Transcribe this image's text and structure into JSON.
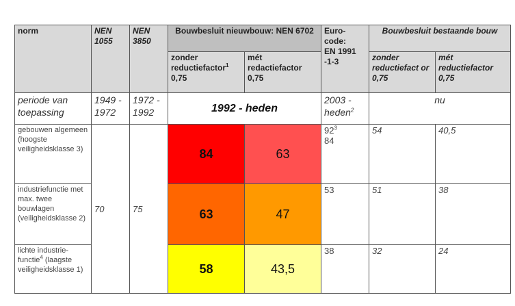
{
  "header": {
    "norm": "norm",
    "nen1055": "NEN 1055",
    "nen3850": "NEN 3850",
    "bb_nieuwbouw": "Bouwbesluit nieuwbouw: NEN 6702",
    "nb_zonder": "zonder reductiefactor",
    "nb_zonder_sup": "1",
    "nb_zonder_val": "0,75",
    "nb_met": "mét redactiefactor",
    "nb_met_val": "0,75",
    "eurocode_1": "Euro-code:",
    "eurocode_2": "EN 1991 -1-3",
    "bb_bestaand": "Bouwbesluit bestaande bouw",
    "bb_zonder": "zonder reductiefact or 0,75",
    "bb_met": "mét reductiefactor 0,75"
  },
  "periode": {
    "label": "periode van toepassing",
    "nen1055": "1949 - 1972",
    "nen3850": "1972 - 1992",
    "nieuwbouw": "1992 - heden",
    "eurocode": "2003 - heden",
    "eurocode_sup": "2",
    "bestaand": "nu"
  },
  "shared": {
    "nen1055": "70",
    "nen3850": "75"
  },
  "rows": [
    {
      "label": "gebouwen algemeen (hoogste veiligheidsklasse 3)",
      "zonder": "84",
      "met": "63",
      "euro": "92",
      "euro_sup": "3",
      "euro2": "84",
      "bz": "54",
      "bm": "40,5",
      "c1": "#ff0000",
      "c2": "#ff5050"
    },
    {
      "label": "industriefunctie met max. twee bouwlagen (veiligheidsklasse 2)",
      "zonder": "63",
      "met": "47",
      "euro": "53",
      "bz": "51",
      "bm": "38",
      "c1": "#ff6600",
      "c2": "#ff9900"
    },
    {
      "label_a": "lichte industrie-functie",
      "label_sup": "4",
      "label_b": " (laagste veiligheidsklasse 1)",
      "zonder": "58",
      "met": "43,5",
      "euro": "38",
      "bz": "32",
      "bm": "24",
      "c1": "#ffff00",
      "c2": "#ffff99"
    }
  ]
}
